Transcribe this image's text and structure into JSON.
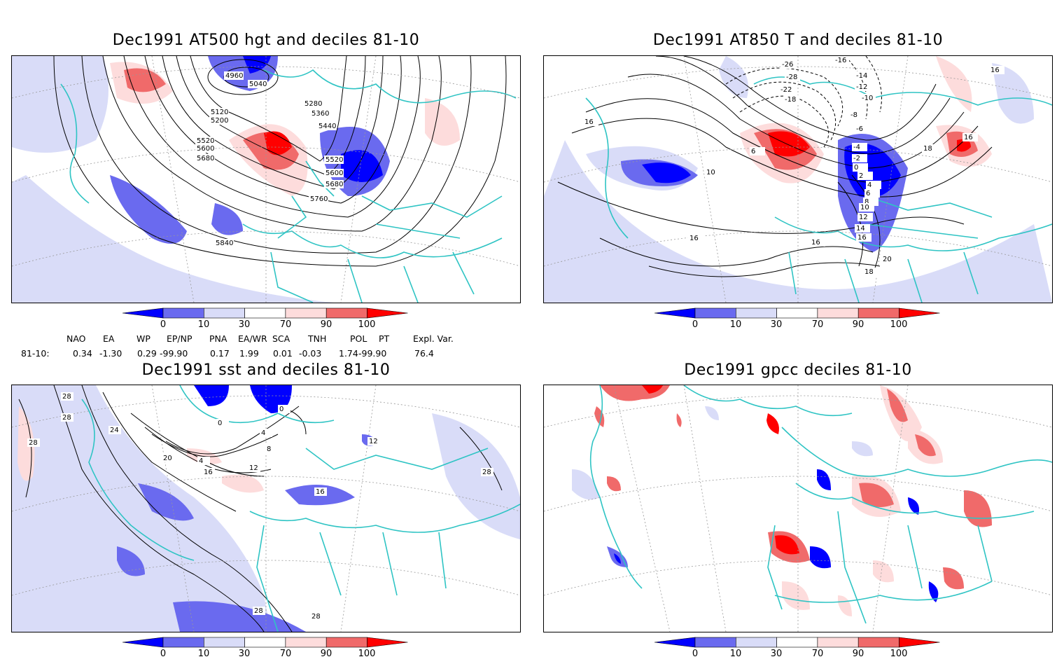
{
  "panels": [
    {
      "title": "Dec1991 AT500 hgt and deciles 81-10",
      "contour_labels": [
        "4960",
        "5040",
        "5120",
        "5200",
        "5280",
        "5360",
        "5440",
        "5520",
        "5600",
        "5680",
        "5760",
        "5840",
        "5520",
        "5600",
        "5680"
      ]
    },
    {
      "title": "Dec1991 AT850 T and deciles 81-10",
      "contour_labels": [
        "-26",
        "-28",
        "-16",
        "-14",
        "-12",
        "-10",
        "-8",
        "-6",
        "-4",
        "-2",
        "0",
        "2",
        "4",
        "6",
        "8",
        "10",
        "12",
        "14",
        "16",
        "18",
        "20",
        "16",
        "6",
        "10",
        "16",
        "16",
        "16",
        "16",
        "18",
        "-18",
        "-22"
      ]
    },
    {
      "title": "Dec1991 sst and deciles 81-10",
      "contour_labels": [
        "28",
        "28",
        "28",
        "24",
        "20",
        "16",
        "12",
        "8",
        "4",
        "0",
        "0",
        "4",
        "16",
        "28",
        "28",
        "28",
        "12"
      ]
    },
    {
      "title": "Dec1991 gpcc deciles 81-10",
      "contour_labels": []
    }
  ],
  "colorbar": {
    "labels": [
      "0",
      "10",
      "30",
      "70",
      "90",
      "100"
    ],
    "colors": [
      "#0000ff",
      "#6a6aef",
      "#d9dcf8",
      "#ffffff",
      "#fddcdc",
      "#f06a6a",
      "#ff0000"
    ]
  },
  "teleconnections": {
    "headers": [
      "NAO",
      "EA",
      "WP",
      "EP/NP",
      "PNA",
      "EA/WR",
      "SCA",
      "TNH",
      "POL",
      "PT",
      "Expl. Var."
    ],
    "row_label": "81-10:",
    "values": [
      "0.34",
      "-1.30",
      "0.29",
      "-99.90",
      "0.17",
      "1.99",
      "0.01",
      "-0.03",
      "1.74",
      "-99.90",
      "76.4"
    ]
  },
  "map_colors": {
    "coast": "#2fc4c4",
    "blue_strong": "#0000ff",
    "blue_mid": "#6a6aef",
    "blue_light": "#d9dcf8",
    "red_light": "#fddcdc",
    "red_mid": "#f06a6a",
    "red_strong": "#ff0000"
  }
}
